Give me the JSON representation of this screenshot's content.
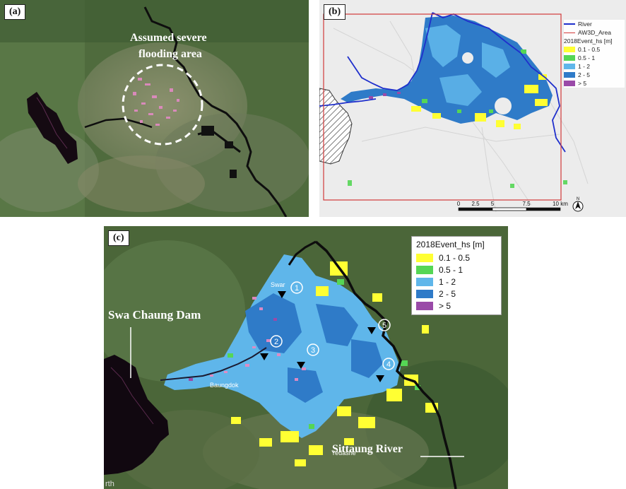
{
  "panels": {
    "a": {
      "label": "(a)",
      "annotation_line1": "Assumed severe",
      "annotation_line2": "flooding area"
    },
    "b": {
      "label": "(b)",
      "legend": {
        "river": "River",
        "area": "AW3D_Area",
        "title": "2018Event_hs [m]",
        "classes": [
          "0.1 - 0.5",
          "0.5 - 1",
          "1 - 2",
          "2 - 5",
          "> 5"
        ]
      },
      "scalebar": {
        "ticks": [
          "0",
          "2.5",
          "5",
          "7.5",
          "10 km"
        ]
      },
      "north_symbol": "N"
    },
    "c": {
      "label": "(c)",
      "legend": {
        "title": "2018Event_hs [m]",
        "classes": [
          "0.1 - 0.5",
          "0.5 - 1",
          "1 - 2",
          "2 - 5",
          "> 5"
        ]
      },
      "dam_label": "Swa Chaung Dam",
      "river_label": "Sittaung River",
      "town_labels": [
        "Swar",
        "Baungdok",
        "Yedashe"
      ],
      "markers": [
        "1",
        "2",
        "3",
        "4",
        "5"
      ],
      "credit": "rth"
    }
  },
  "colors": {
    "class_colors": [
      "#ffff33",
      "#55d655",
      "#5fb6ea",
      "#2f7bc8",
      "#9a4aa8"
    ],
    "river_b": "#1f2fcc",
    "area_b": "#d23a3a",
    "satellite": "#4e6a3c"
  }
}
